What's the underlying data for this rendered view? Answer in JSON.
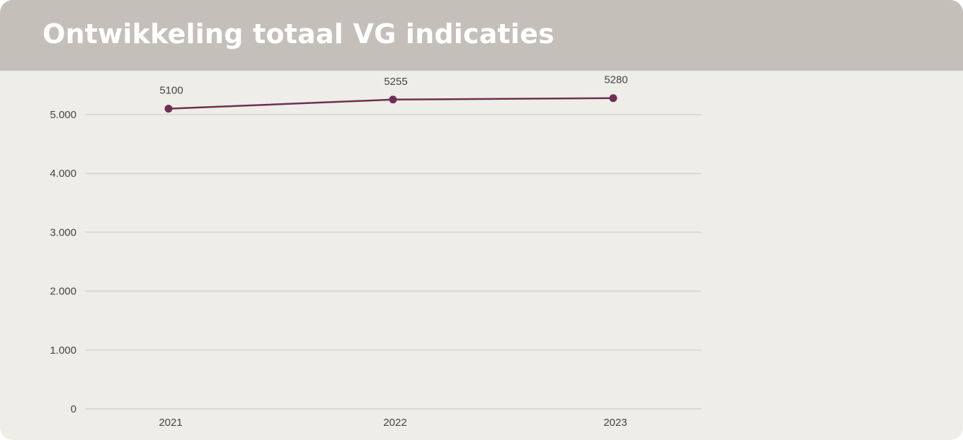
{
  "header": {
    "title": "Ontwikkeling totaal VG indicaties"
  },
  "colors": {
    "header_bg": "#c4c0b9",
    "card_bg": "#eeede8",
    "line": "#6e2f52",
    "grid": "#d9d8d4"
  },
  "chart_data": {
    "type": "line",
    "categories": [
      "2021",
      "2022",
      "2023"
    ],
    "series": [
      {
        "values": [
          5100,
          5255,
          5280
        ]
      }
    ],
    "data_labels": [
      "5100",
      "5255",
      "5280"
    ],
    "y_ticks": [
      0,
      1000,
      2000,
      3000,
      4000,
      5000
    ],
    "y_tick_labels": [
      "0",
      "1.000",
      "2.000",
      "3.000",
      "4.000",
      "5.000"
    ],
    "ylim": [
      0,
      5000
    ],
    "grid": true,
    "legend": "none"
  }
}
